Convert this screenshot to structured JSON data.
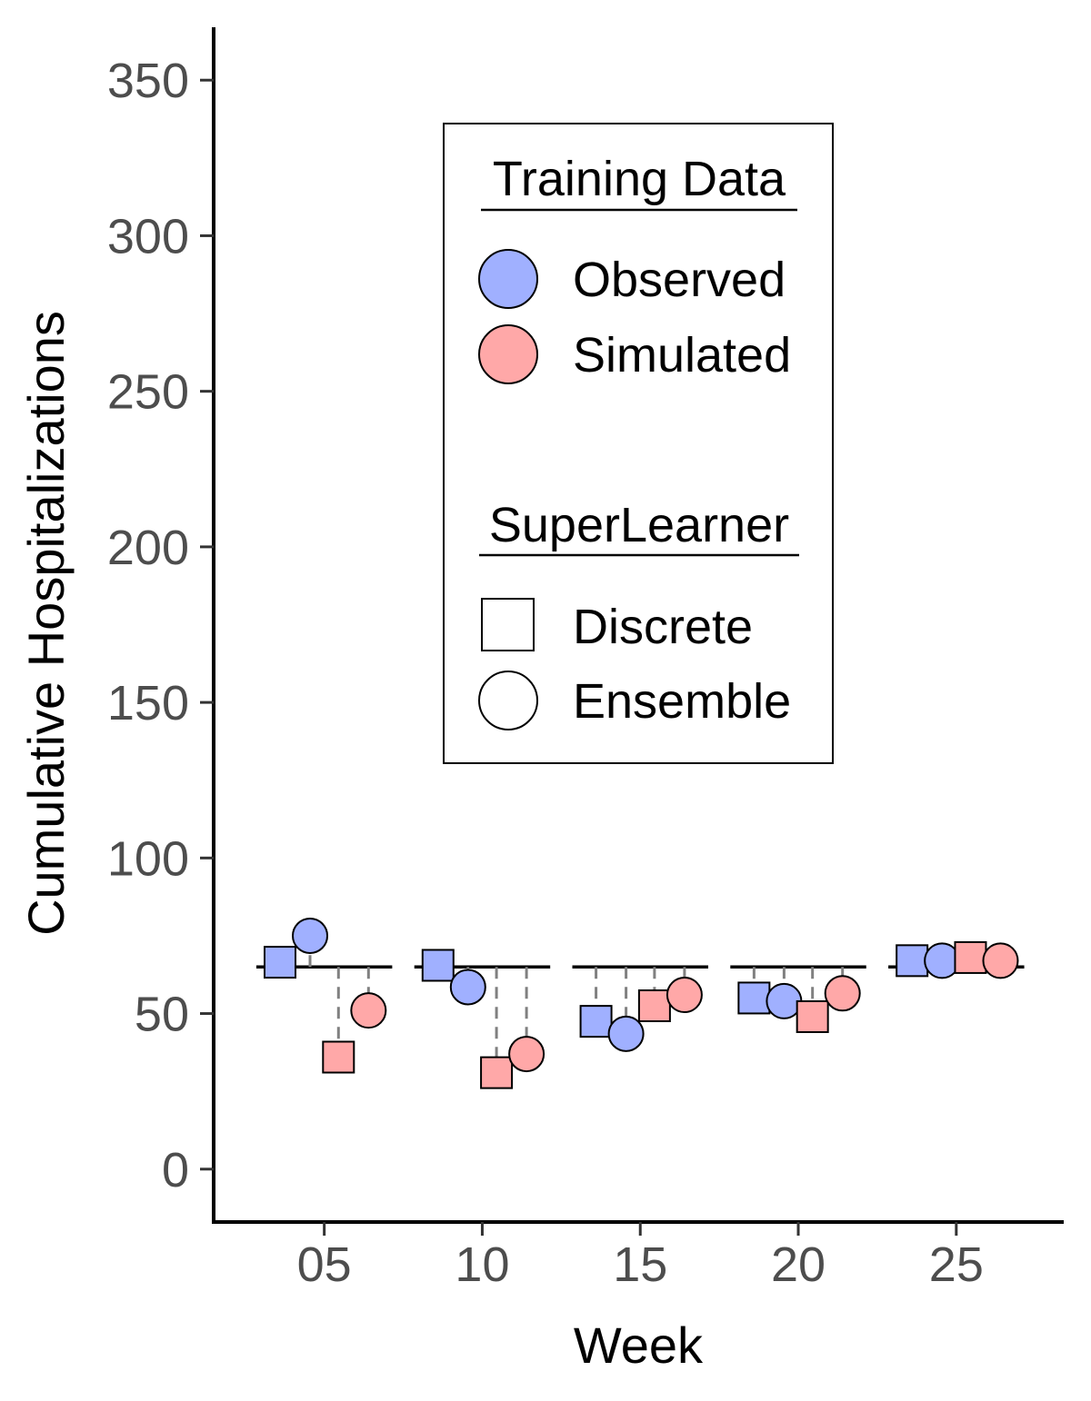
{
  "chart_data": {
    "type": "scatter",
    "xlabel": "Week",
    "ylabel": "Cumulative Hospitalizations",
    "ylim": [
      -17,
      367
    ],
    "yticks": [
      0,
      50,
      100,
      150,
      200,
      250,
      300,
      350
    ],
    "ytick_labels": [
      "0",
      "50",
      "100",
      "150",
      "200",
      "250",
      "300",
      "350"
    ],
    "xlim": [
      1.5,
      28.4
    ],
    "xticks": [
      5,
      10,
      15,
      20,
      25
    ],
    "xtick_labels": [
      "05",
      "10",
      "15",
      "20",
      "25"
    ],
    "grid": false,
    "legend_position": "top-center",
    "colors": {
      "observed": "#a0b0ff",
      "simulated": "#ffa8a8",
      "reference_line": "#000000",
      "connector": "#808080"
    },
    "legend": {
      "training_title": "Training Data",
      "training_items": [
        {
          "label": "Observed",
          "key": "observed"
        },
        {
          "label": "Simulated",
          "key": "simulated"
        }
      ],
      "superlearner_title": "SuperLearner",
      "superlearner_items": [
        {
          "label": "Discrete",
          "shape": "square"
        },
        {
          "label": "Ensemble",
          "shape": "circle"
        }
      ]
    },
    "weeks": [
      {
        "week": 5,
        "actual": 65,
        "points": [
          {
            "x": 3.6,
            "y": 66.5,
            "training": "observed",
            "superlearner": "discrete"
          },
          {
            "x": 4.55,
            "y": 75,
            "training": "observed",
            "superlearner": "ensemble"
          },
          {
            "x": 5.45,
            "y": 36,
            "training": "simulated",
            "superlearner": "discrete"
          },
          {
            "x": 6.4,
            "y": 51,
            "training": "simulated",
            "superlearner": "ensemble"
          }
        ]
      },
      {
        "week": 10,
        "actual": 65,
        "points": [
          {
            "x": 8.6,
            "y": 65.5,
            "training": "observed",
            "superlearner": "discrete"
          },
          {
            "x": 9.55,
            "y": 58.5,
            "training": "observed",
            "superlearner": "ensemble"
          },
          {
            "x": 10.45,
            "y": 31,
            "training": "simulated",
            "superlearner": "discrete"
          },
          {
            "x": 11.4,
            "y": 37,
            "training": "simulated",
            "superlearner": "ensemble"
          }
        ]
      },
      {
        "week": 15,
        "actual": 65,
        "points": [
          {
            "x": 13.6,
            "y": 47.5,
            "training": "observed",
            "superlearner": "discrete"
          },
          {
            "x": 14.55,
            "y": 43.5,
            "training": "observed",
            "superlearner": "ensemble"
          },
          {
            "x": 15.45,
            "y": 52.5,
            "training": "simulated",
            "superlearner": "discrete"
          },
          {
            "x": 16.4,
            "y": 56,
            "training": "simulated",
            "superlearner": "ensemble"
          }
        ]
      },
      {
        "week": 20,
        "actual": 65,
        "points": [
          {
            "x": 18.6,
            "y": 55,
            "training": "observed",
            "superlearner": "discrete"
          },
          {
            "x": 19.55,
            "y": 54,
            "training": "observed",
            "superlearner": "ensemble"
          },
          {
            "x": 20.45,
            "y": 49,
            "training": "simulated",
            "superlearner": "discrete"
          },
          {
            "x": 21.4,
            "y": 56.5,
            "training": "simulated",
            "superlearner": "ensemble"
          }
        ]
      },
      {
        "week": 25,
        "actual": 65,
        "points": [
          {
            "x": 23.6,
            "y": 67,
            "training": "observed",
            "superlearner": "discrete"
          },
          {
            "x": 24.55,
            "y": 67,
            "training": "observed",
            "superlearner": "ensemble"
          },
          {
            "x": 25.45,
            "y": 68,
            "training": "simulated",
            "superlearner": "discrete"
          },
          {
            "x": 26.4,
            "y": 67,
            "training": "simulated",
            "superlearner": "ensemble"
          }
        ]
      }
    ]
  }
}
